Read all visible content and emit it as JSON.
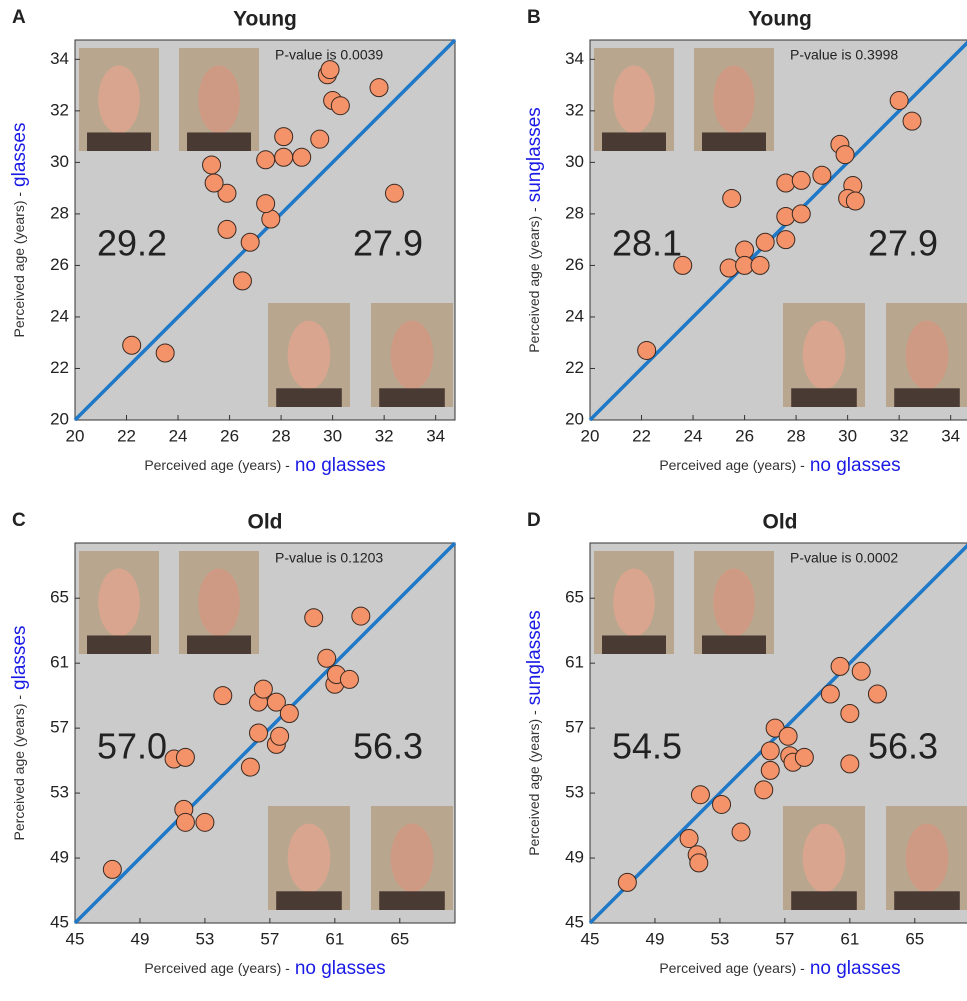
{
  "chart_data": [
    {
      "type": "scatter",
      "panel": "A",
      "title": "Young",
      "xlabel": "Perceived age (years) -",
      "xlabel_highlight": "no glasses",
      "ylabel": "Perceived age (years) -",
      "ylabel_highlight": "glasses",
      "annotations": [
        "P-value is 0.0039",
        "29.2",
        "27.9"
      ],
      "x": [
        22.2,
        23.5,
        26.5,
        26.8,
        25.9,
        25.9,
        25.4,
        25.3,
        27.6,
        27.4,
        27.4,
        28.1,
        28.1,
        28.8,
        29.5,
        29.8,
        29.9,
        30.0,
        30.3,
        31.8,
        32.4
      ],
      "y": [
        22.9,
        22.6,
        25.4,
        26.9,
        27.4,
        28.8,
        29.2,
        29.9,
        27.8,
        28.4,
        30.1,
        30.2,
        31.0,
        30.2,
        30.9,
        33.4,
        33.6,
        32.4,
        32.2,
        32.9,
        28.8
      ],
      "xlim": [
        20,
        34.75
      ],
      "ylim": [
        20,
        34.75
      ],
      "xticks": [
        20,
        22,
        24,
        26,
        28,
        30,
        32,
        34
      ],
      "yticks": [
        20,
        22,
        24,
        26,
        28,
        30,
        32,
        34
      ],
      "color": "#f4926a",
      "diagonal_color": "#1f78c8"
    },
    {
      "type": "scatter",
      "panel": "B",
      "title": "Young",
      "xlabel": "Perceived age (years) -",
      "xlabel_highlight": "no glasses",
      "ylabel": "Perceived age (years) -",
      "ylabel_highlight": "sunglasses",
      "annotations": [
        "P-value is 0.3998",
        "28.1",
        "27.9"
      ],
      "x": [
        22.2,
        23.6,
        25.5,
        25.4,
        26.0,
        26.0,
        26.6,
        26.8,
        27.6,
        27.6,
        27.6,
        28.2,
        28.2,
        29.0,
        29.7,
        29.9,
        30.2,
        30.0,
        30.3,
        32.0,
        32.5
      ],
      "y": [
        22.7,
        26.0,
        28.6,
        25.9,
        26.6,
        26.0,
        26.0,
        26.9,
        27.0,
        27.9,
        29.2,
        28.0,
        29.3,
        29.5,
        30.7,
        30.3,
        29.1,
        28.6,
        28.5,
        32.4,
        31.6
      ],
      "xlim": [
        20,
        34.75
      ],
      "ylim": [
        20,
        34.75
      ],
      "xticks": [
        20,
        22,
        24,
        26,
        28,
        30,
        32,
        34
      ],
      "yticks": [
        20,
        22,
        24,
        26,
        28,
        30,
        32,
        34
      ],
      "color": "#f4926a",
      "diagonal_color": "#1f78c8"
    },
    {
      "type": "scatter",
      "panel": "C",
      "title": "Old",
      "xlabel": "Perceived age (years) -",
      "xlabel_highlight": "no glasses",
      "ylabel": "Perceived age (years) -",
      "ylabel_highlight": "glasses",
      "annotations": [
        "P-value is 0.1203",
        "57.0",
        "56.3"
      ],
      "x": [
        47.3,
        51.1,
        51.8,
        51.7,
        51.8,
        53.0,
        54.1,
        55.8,
        56.3,
        56.3,
        56.6,
        57.4,
        57.6,
        57.4,
        58.2,
        59.7,
        60.5,
        61.0,
        61.1,
        61.9,
        62.6
      ],
      "y": [
        48.3,
        55.1,
        55.2,
        52.0,
        51.2,
        51.2,
        59.0,
        54.6,
        56.7,
        58.6,
        59.4,
        56.0,
        56.5,
        58.6,
        57.9,
        63.8,
        61.3,
        59.7,
        60.3,
        60.0,
        63.9
      ],
      "xlim": [
        45,
        68.4
      ],
      "ylim": [
        45,
        68.4
      ],
      "xticks": [
        45,
        49,
        53,
        57,
        61,
        65
      ],
      "yticks": [
        45,
        49,
        53,
        57,
        61,
        65
      ],
      "color": "#f4926a",
      "diagonal_color": "#1f78c8"
    },
    {
      "type": "scatter",
      "panel": "D",
      "title": "Old",
      "xlabel": "Perceived age (years) -",
      "xlabel_highlight": "no glasses",
      "ylabel": "Perceived age (years) -",
      "ylabel_highlight": "sunglasses",
      "annotations": [
        "P-value is 0.0002",
        "54.5",
        "56.3"
      ],
      "x": [
        47.3,
        51.1,
        51.6,
        51.7,
        51.8,
        53.1,
        54.3,
        55.7,
        56.1,
        56.1,
        56.4,
        57.2,
        57.3,
        57.5,
        58.2,
        59.8,
        60.4,
        61.0,
        61.0,
        61.7,
        62.7
      ],
      "y": [
        47.5,
        50.2,
        49.2,
        48.7,
        52.9,
        52.3,
        50.6,
        53.2,
        54.4,
        55.6,
        57.0,
        56.5,
        55.3,
        54.9,
        55.2,
        59.1,
        60.8,
        57.9,
        54.8,
        60.5,
        59.1
      ],
      "xlim": [
        45,
        68.4
      ],
      "ylim": [
        45,
        68.4
      ],
      "xticks": [
        45,
        49,
        53,
        57,
        61,
        65
      ],
      "yticks": [
        45,
        49,
        53,
        57,
        61,
        65
      ],
      "color": "#f4926a",
      "diagonal_color": "#1f78c8"
    }
  ]
}
